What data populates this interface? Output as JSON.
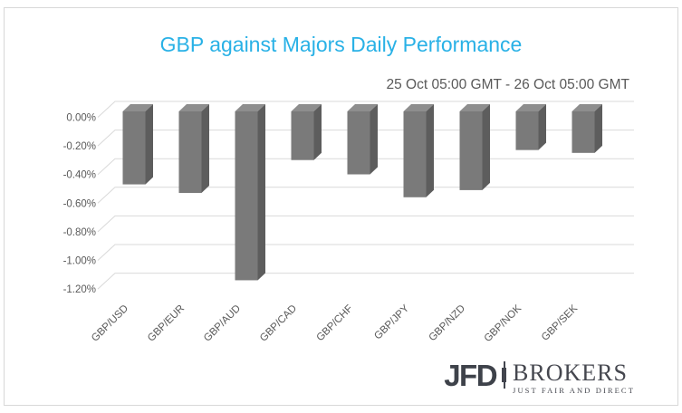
{
  "title": {
    "text": "GBP against Majors Daily Performance",
    "color": "#29b1e6"
  },
  "subtitle": "25 Oct 05:00 GMT - 26 Oct 05:00 GMT",
  "chart_data": {
    "type": "bar",
    "style": "3d-column",
    "title": "GBP against Majors Daily Performance",
    "subtitle": "25 Oct 05:00 GMT - 26 Oct 05:00 GMT",
    "categories": [
      "GBP/USD",
      "GBP/EUR",
      "GBP/AUD",
      "GBP/CAD",
      "GBP/CHF",
      "GBP/JPY",
      "GBP/NZD",
      "GBP/NOK",
      "GBP/SEK"
    ],
    "values": [
      -0.51,
      -0.57,
      -1.18,
      -0.34,
      -0.44,
      -0.6,
      -0.55,
      -0.27,
      -0.29
    ],
    "unit": "%",
    "xlabel": "",
    "ylabel": "",
    "ylim": [
      -1.2,
      0
    ],
    "ytick_labels": [
      "0.00%",
      "-0.20%",
      "-0.40%",
      "-0.60%",
      "-0.80%",
      "-1.00%",
      "-1.20%"
    ],
    "grid": true,
    "legend": "none",
    "colors": {
      "bar_front": "#7a7a7a",
      "bar_side": "#5d5d5d",
      "bar_top": "#8e8e8e",
      "gridline": "#d9d9d9",
      "axis_label": "#595959"
    }
  },
  "logo": {
    "brand": "JFD",
    "name": "BROKERS",
    "tagline": "JUST FAIR AND DIRECT"
  }
}
